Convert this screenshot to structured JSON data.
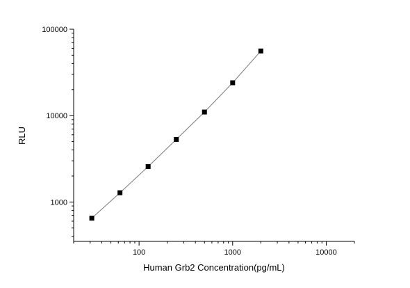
{
  "chart_data": {
    "type": "scatter",
    "title": "",
    "xlabel": "Human Grb2 Concentration(pg/mL)",
    "ylabel": "RLU",
    "x_scale": "log",
    "y_scale": "log",
    "xlim": [
      20,
      20000
    ],
    "ylim": [
      350,
      100000
    ],
    "x_ticks": [
      100,
      1000,
      10000
    ],
    "x_tick_labels": [
      "100",
      "1000",
      "10000"
    ],
    "y_ticks": [
      1000,
      10000,
      100000
    ],
    "y_tick_labels": [
      "1000",
      "10000",
      "100000"
    ],
    "grid": false,
    "legend": "none",
    "marker": "square",
    "marker_color": "#000000",
    "line_color": "#7a7a7a",
    "series": [
      {
        "x": [
          31.25,
          62.5,
          125,
          250,
          500,
          1000,
          2000
        ],
        "y": [
          650,
          1280,
          2570,
          5300,
          11000,
          24000,
          56000
        ]
      }
    ]
  }
}
